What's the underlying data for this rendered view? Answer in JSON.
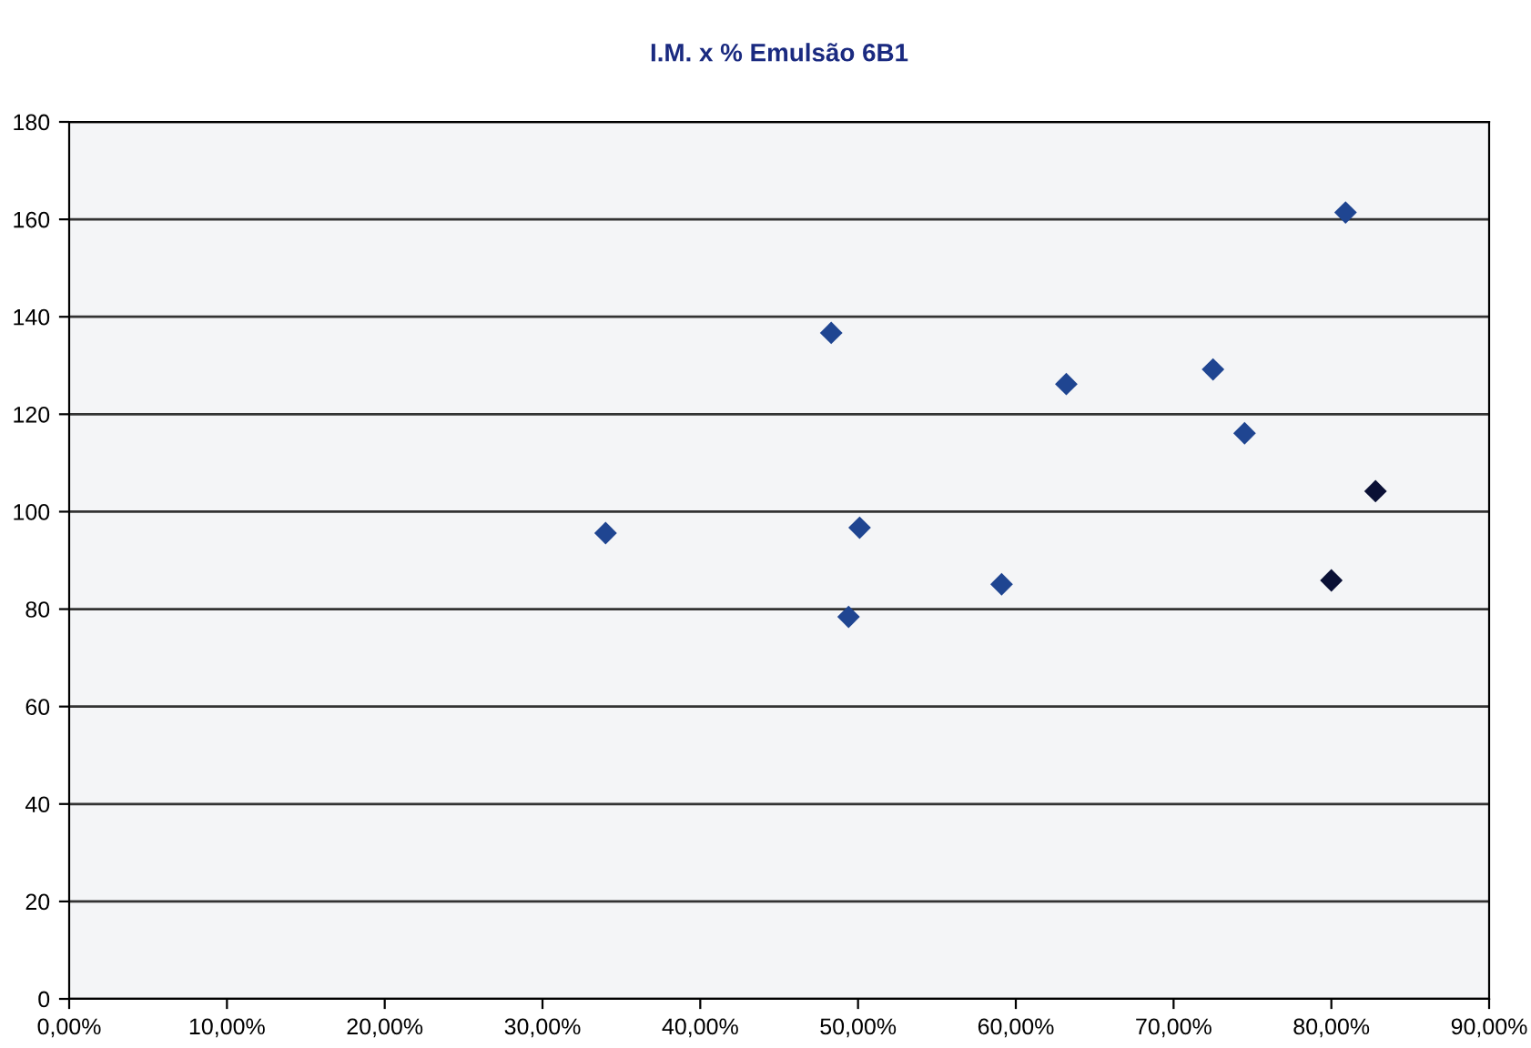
{
  "chart_data": {
    "type": "scatter",
    "title": "I.M. x % Emulsão 6B1",
    "x": [
      34.0,
      48.3,
      50.1,
      49.4,
      59.1,
      63.2,
      72.5,
      74.5,
      80.9,
      82.8,
      80.0
    ],
    "values": [
      95.6,
      136.7,
      96.7,
      78.4,
      85.1,
      126.2,
      129.2,
      116.1,
      161.4,
      104.2,
      85.9
    ],
    "colors": [
      "#1f4591",
      "#1f4591",
      "#1f4591",
      "#1f4591",
      "#1f4591",
      "#1f4591",
      "#1f4591",
      "#1f4591",
      "#1f4591",
      "#0a1035",
      "#0a1035"
    ],
    "xlim": [
      0,
      90
    ],
    "xticks": [
      {
        "value": 0,
        "label": "0,00%"
      },
      {
        "value": 10,
        "label": "10,00%"
      },
      {
        "value": 20,
        "label": "20,00%"
      },
      {
        "value": 30,
        "label": "30,00%"
      },
      {
        "value": 40,
        "label": "40,00%"
      },
      {
        "value": 50,
        "label": "50,00%"
      },
      {
        "value": 60,
        "label": "60,00%"
      },
      {
        "value": 70,
        "label": "70,00%"
      },
      {
        "value": 80,
        "label": "80,00%"
      },
      {
        "value": 90,
        "label": "90,00%"
      }
    ],
    "ylim": [
      0,
      180
    ],
    "yticks": [
      0,
      20,
      40,
      60,
      80,
      100,
      120,
      140,
      160,
      180
    ],
    "grid": "y",
    "marker": "diamond"
  }
}
